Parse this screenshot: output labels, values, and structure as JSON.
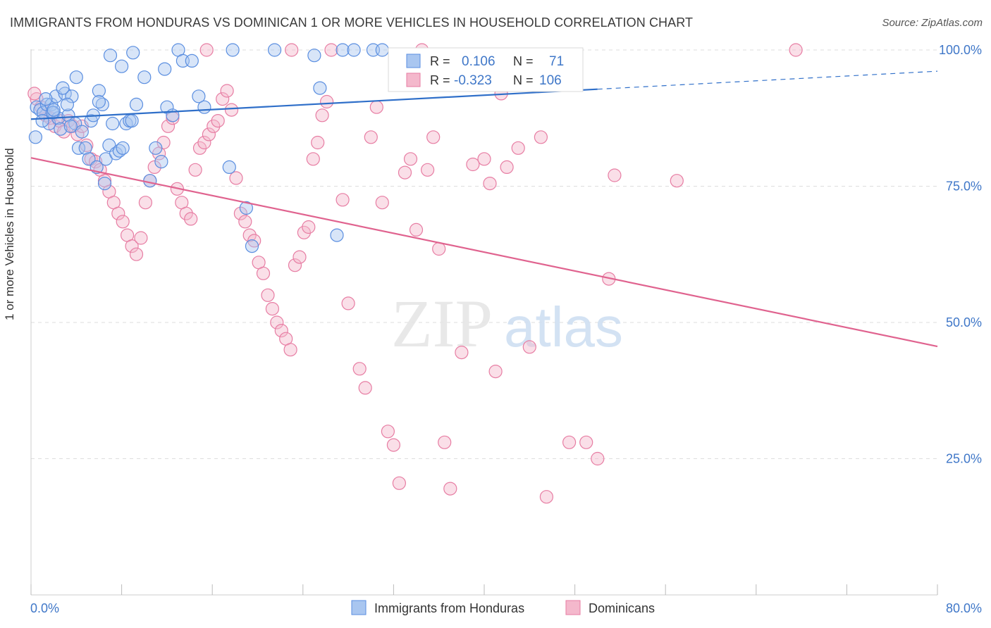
{
  "title": "IMMIGRANTS FROM HONDURAS VS DOMINICAN 1 OR MORE VEHICLES IN HOUSEHOLD CORRELATION CHART",
  "source": "Source: ZipAtlas.com",
  "watermark": {
    "zip": "ZIP",
    "atlas": "atlas"
  },
  "chart_data": {
    "type": "scatter",
    "xlabel": "",
    "ylabel": "1 or more Vehicles in Household",
    "xlim": [
      0,
      80
    ],
    "ylim": [
      0,
      104
    ],
    "x_tick_labels": [
      "0.0%",
      "80.0%"
    ],
    "y_ticks": [
      25,
      50,
      75,
      100
    ],
    "y_tick_labels": [
      "25.0%",
      "50.0%",
      "75.0%",
      "100.0%"
    ],
    "grid": true,
    "legend_position": "bottom-center",
    "colors": {
      "blue": "#5a8ee0",
      "blue_fill": "#a9c6f0",
      "blue_line": "#2f6fc9",
      "pink": "#e77da3",
      "pink_fill": "#f4b8cc",
      "pink_line": "#e0638f",
      "axis_text": "#3f77c8"
    },
    "stats": [
      {
        "r_label": "R =",
        "r_value": "0.106",
        "n_label": "N =",
        "n_value": "71"
      },
      {
        "r_label": "R =",
        "r_value": "-0.323",
        "n_label": "N =",
        "n_value": "106"
      }
    ],
    "series": [
      {
        "name": "Immigrants from Honduras",
        "color": "blue",
        "trend": {
          "x": [
            0,
            50
          ],
          "y": [
            87.3,
            92.8
          ],
          "dashed_to": [
            80,
            96.1
          ]
        },
        "points": [
          [
            0.5,
            89.5
          ],
          [
            0.8,
            89
          ],
          [
            1.1,
            88.5
          ],
          [
            1.4,
            90
          ],
          [
            1.6,
            86.5
          ],
          [
            1.8,
            90
          ],
          [
            2.0,
            88.5
          ],
          [
            2.2,
            91.5
          ],
          [
            2.4,
            87.5
          ],
          [
            2.6,
            85.5
          ],
          [
            3.0,
            92
          ],
          [
            3.3,
            88
          ],
          [
            3.6,
            91.5
          ],
          [
            3.9,
            86.5
          ],
          [
            4.2,
            82
          ],
          [
            4.5,
            85
          ],
          [
            4.8,
            82
          ],
          [
            5.1,
            80
          ],
          [
            5.3,
            87
          ],
          [
            5.5,
            88
          ],
          [
            6.0,
            92.5
          ],
          [
            6.3,
            90
          ],
          [
            6.6,
            80
          ],
          [
            6.9,
            82.5
          ],
          [
            7.2,
            86.5
          ],
          [
            7.5,
            81
          ],
          [
            7.8,
            81.5
          ],
          [
            8.1,
            82
          ],
          [
            8.4,
            86.5
          ],
          [
            8.7,
            87
          ],
          [
            0.4,
            84
          ],
          [
            1.0,
            87
          ],
          [
            1.3,
            91
          ],
          [
            1.9,
            88.5
          ],
          [
            2.8,
            93
          ],
          [
            3.5,
            86
          ],
          [
            4.0,
            95
          ],
          [
            5.8,
            78.5
          ],
          [
            6.5,
            75.5
          ],
          [
            7.0,
            99
          ],
          [
            8.0,
            97
          ],
          [
            8.9,
            87
          ],
          [
            9.3,
            90
          ],
          [
            10.0,
            95
          ],
          [
            10.5,
            76
          ],
          [
            11.0,
            82
          ],
          [
            11.5,
            79.5
          ],
          [
            12.0,
            89.5
          ],
          [
            12.5,
            88
          ],
          [
            13.0,
            100
          ],
          [
            13.4,
            98
          ],
          [
            14.2,
            98
          ],
          [
            14.8,
            91.5
          ],
          [
            15.3,
            89.5
          ],
          [
            17.5,
            78.5
          ],
          [
            17.8,
            100
          ],
          [
            19.0,
            71
          ],
          [
            19.5,
            64
          ],
          [
            21.5,
            100
          ],
          [
            25.0,
            99
          ],
          [
            25.5,
            93
          ],
          [
            27.5,
            100
          ],
          [
            28.5,
            100
          ],
          [
            30.2,
            100
          ],
          [
            31.0,
            100
          ],
          [
            27.0,
            66
          ],
          [
            6.0,
            90.5
          ],
          [
            9.0,
            99.5
          ],
          [
            11.8,
            96.5
          ],
          [
            2.0,
            89
          ],
          [
            3.2,
            90
          ]
        ]
      },
      {
        "name": "Dominicans",
        "color": "pink",
        "trend": {
          "x": [
            0,
            80
          ],
          "y": [
            80.2,
            45.6
          ]
        },
        "points": [
          [
            0.5,
            91
          ],
          [
            0.9,
            89.5
          ],
          [
            1.3,
            88
          ],
          [
            1.7,
            87.5
          ],
          [
            2.1,
            86
          ],
          [
            2.5,
            87
          ],
          [
            2.9,
            85
          ],
          [
            3.3,
            87
          ],
          [
            3.7,
            86
          ],
          [
            4.1,
            84.5
          ],
          [
            4.5,
            86
          ],
          [
            4.9,
            82.5
          ],
          [
            5.3,
            80
          ],
          [
            5.7,
            79.5
          ],
          [
            6.1,
            78
          ],
          [
            6.5,
            76
          ],
          [
            6.9,
            74
          ],
          [
            7.3,
            72
          ],
          [
            7.7,
            70
          ],
          [
            8.1,
            68.5
          ],
          [
            8.5,
            66
          ],
          [
            8.9,
            64
          ],
          [
            9.3,
            62.5
          ],
          [
            9.7,
            65.5
          ],
          [
            10.1,
            72
          ],
          [
            10.5,
            76
          ],
          [
            10.9,
            78.5
          ],
          [
            11.3,
            81
          ],
          [
            11.7,
            83
          ],
          [
            12.1,
            86
          ],
          [
            12.5,
            87.5
          ],
          [
            12.9,
            74.5
          ],
          [
            13.3,
            72
          ],
          [
            13.7,
            70
          ],
          [
            14.1,
            69
          ],
          [
            14.5,
            78
          ],
          [
            14.9,
            82
          ],
          [
            15.3,
            83
          ],
          [
            15.7,
            84.5
          ],
          [
            16.1,
            86
          ],
          [
            16.5,
            87
          ],
          [
            16.9,
            91
          ],
          [
            17.3,
            92.5
          ],
          [
            17.7,
            89
          ],
          [
            18.1,
            76.5
          ],
          [
            18.5,
            70
          ],
          [
            18.9,
            68.5
          ],
          [
            19.3,
            66
          ],
          [
            19.7,
            65
          ],
          [
            20.1,
            61
          ],
          [
            20.5,
            59
          ],
          [
            20.9,
            55
          ],
          [
            21.3,
            52.5
          ],
          [
            21.7,
            50
          ],
          [
            22.1,
            48.5
          ],
          [
            22.5,
            47
          ],
          [
            22.9,
            45
          ],
          [
            23.3,
            60.5
          ],
          [
            23.7,
            62
          ],
          [
            24.1,
            66.5
          ],
          [
            24.5,
            67.5
          ],
          [
            24.9,
            80
          ],
          [
            25.3,
            83
          ],
          [
            25.7,
            88
          ],
          [
            26.1,
            90.5
          ],
          [
            26.5,
            100
          ],
          [
            27.5,
            72.5
          ],
          [
            28.0,
            53.5
          ],
          [
            29.0,
            41.5
          ],
          [
            29.5,
            38
          ],
          [
            30.0,
            84
          ],
          [
            30.5,
            89.5
          ],
          [
            31.0,
            72
          ],
          [
            31.5,
            30
          ],
          [
            32.0,
            27.5
          ],
          [
            32.5,
            20.5
          ],
          [
            33.0,
            77.5
          ],
          [
            33.5,
            80
          ],
          [
            34.0,
            67
          ],
          [
            34.5,
            100
          ],
          [
            35.0,
            78
          ],
          [
            35.5,
            84
          ],
          [
            36.0,
            63.5
          ],
          [
            36.5,
            28
          ],
          [
            37.0,
            19.5
          ],
          [
            38.0,
            44.5
          ],
          [
            39.0,
            79
          ],
          [
            40.0,
            80
          ],
          [
            40.5,
            75.5
          ],
          [
            41.0,
            41
          ],
          [
            41.5,
            92
          ],
          [
            42.0,
            78.5
          ],
          [
            43.0,
            82
          ],
          [
            44.0,
            45.5
          ],
          [
            45.0,
            84
          ],
          [
            45.5,
            18
          ],
          [
            47.5,
            28
          ],
          [
            49.0,
            28
          ],
          [
            50.0,
            25
          ],
          [
            51.0,
            58
          ],
          [
            51.5,
            77
          ],
          [
            57.0,
            76
          ],
          [
            67.5,
            100
          ],
          [
            23.0,
            100
          ],
          [
            15.5,
            100
          ],
          [
            0.3,
            92
          ]
        ]
      }
    ]
  }
}
